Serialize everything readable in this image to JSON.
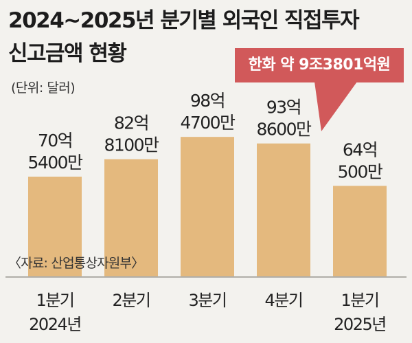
{
  "title_lines": [
    "2024~2025년 분기별 외국인 직접투자",
    "신고금액 현황"
  ],
  "unit_label": "(단위: 달러)",
  "callout": "한화 약 9조3801억원",
  "source": "〈자료: 산업통상자원부〉",
  "colors": {
    "bar": "#e4b97e",
    "callout": "#d1595a",
    "background": "#f3f2ee",
    "axis": "#b0aea8"
  },
  "chart_data": {
    "type": "bar",
    "title": "2024~2025년 분기별 외국인 직접투자 신고금액 현황",
    "unit": "달러",
    "categories": [
      [
        "1분기",
        "2024년"
      ],
      [
        "2분기",
        ""
      ],
      [
        "3분기",
        ""
      ],
      [
        "4분기",
        ""
      ],
      [
        "1분기",
        "2025년"
      ]
    ],
    "values": [
      7054000000,
      8281000000,
      9847000000,
      9386000000,
      6405000000
    ],
    "value_labels": [
      [
        "70억",
        "5400만"
      ],
      [
        "82억",
        "8100만"
      ],
      [
        "98억",
        "4700만"
      ],
      [
        "93억",
        "8600만"
      ],
      [
        "64억",
        "500만"
      ]
    ],
    "annotation": "한화 약 9조3801억원",
    "grid": false,
    "legend": "none"
  }
}
